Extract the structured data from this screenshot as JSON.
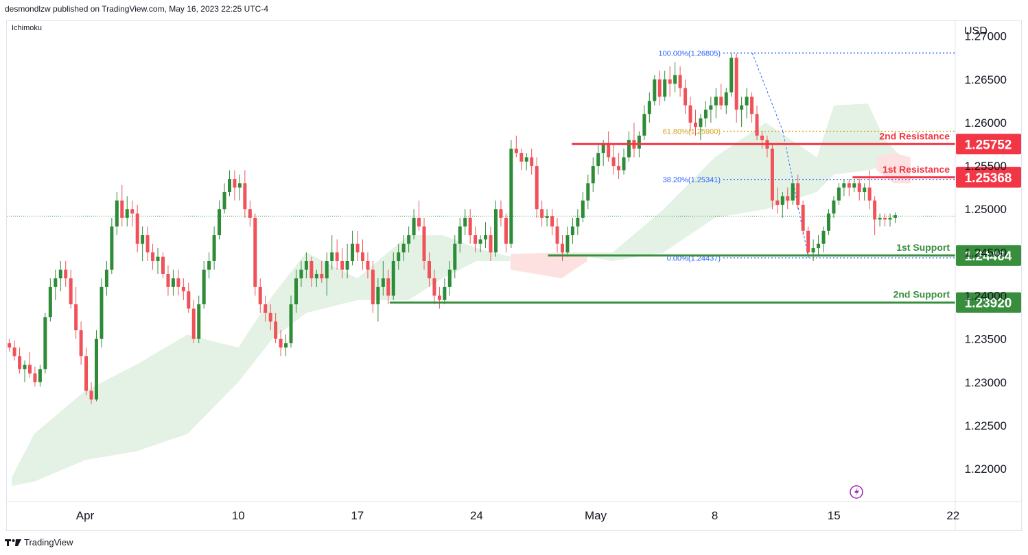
{
  "header": {
    "publisher_line": "desmondlzw published on TradingView.com, May 16, 2023 22:25 UTC-4"
  },
  "indicator_label": "Ichimoku",
  "footer": {
    "brand": "TradingView"
  },
  "colors": {
    "bull": "#2e8b37",
    "bear": "#f0525a",
    "resistance": "#f23645",
    "support": "#388e3c",
    "cloud_bull": "#e3f2e4",
    "cloud_bear": "#fde0e0",
    "fib_blue": "#2962ff",
    "fib_gold": "#d4a017"
  },
  "chart_data": {
    "type": "candlestick",
    "currency_label": "USD",
    "y_ticks": [
      "1.27000",
      "1.26500",
      "1.26000",
      "1.25500",
      "1.25000",
      "1.24500",
      "1.24000",
      "1.23500",
      "1.23000",
      "1.22500",
      "1.22000"
    ],
    "x_ticks": [
      {
        "label": "Apr",
        "day": 0
      },
      {
        "label": "10",
        "day": 9
      },
      {
        "label": "17",
        "day": 16
      },
      {
        "label": "24",
        "day": 23
      },
      {
        "label": "May",
        "day": 30
      },
      {
        "label": "8",
        "day": 37
      },
      {
        "label": "15",
        "day": 44
      },
      {
        "label": "22",
        "day": 51
      }
    ],
    "ylim": [
      1.2162,
      1.2718
    ],
    "levels": [
      {
        "name": "2nd Resistance",
        "value": 1.25752,
        "price_label": "1.25752",
        "type": "resistance",
        "start_day": 28.6
      },
      {
        "name": "1st Resistance",
        "value": 1.25368,
        "price_label": "1.25368",
        "type": "resistance",
        "start_day": 45.1
      },
      {
        "name": "1st Support",
        "value": 1.24464,
        "price_label": "1.24464",
        "type": "support",
        "start_day": 27.2
      },
      {
        "name": "2nd Support",
        "value": 1.2392,
        "price_label": "1.23920",
        "type": "support",
        "start_day": 17.9
      }
    ],
    "fibonacci": [
      {
        "label": "100.00%(1.26805)",
        "value": 1.26805
      },
      {
        "label": "61.80%(1.25900)",
        "value": 1.259
      },
      {
        "label": "38.20%(1.25341)",
        "value": 1.25341
      },
      {
        "label": "0.00%(1.24437)",
        "value": 1.24437
      }
    ],
    "last_price": 1.2492,
    "cloud": [
      {
        "day": -4.3,
        "upper": 1.219,
        "lower": 1.218
      },
      {
        "day": -3,
        "upper": 1.224,
        "lower": 1.2185
      },
      {
        "day": 0,
        "upper": 1.229,
        "lower": 1.221
      },
      {
        "day": 3,
        "upper": 1.232,
        "lower": 1.222
      },
      {
        "day": 6,
        "upper": 1.2355,
        "lower": 1.224
      },
      {
        "day": 9,
        "upper": 1.234,
        "lower": 1.23
      },
      {
        "day": 11,
        "upper": 1.24,
        "lower": 1.235
      },
      {
        "day": 13,
        "upper": 1.245,
        "lower": 1.238
      },
      {
        "day": 16,
        "upper": 1.242,
        "lower": 1.2395
      },
      {
        "day": 19,
        "upper": 1.247,
        "lower": 1.2395
      },
      {
        "day": 21,
        "upper": 1.247,
        "lower": 1.242
      },
      {
        "day": 23,
        "upper": 1.2455,
        "lower": 1.244
      },
      {
        "day": 26,
        "upper": 1.244,
        "lower": 1.244
      },
      {
        "day": 28,
        "upper": 1.245,
        "lower": 1.245
      },
      {
        "day": 31,
        "upper": 1.245,
        "lower": 1.244
      },
      {
        "day": 34,
        "upper": 1.25,
        "lower": 1.245
      },
      {
        "day": 37,
        "upper": 1.256,
        "lower": 1.249
      },
      {
        "day": 40,
        "upper": 1.26,
        "lower": 1.25
      },
      {
        "day": 43,
        "upper": 1.256,
        "lower": 1.252
      },
      {
        "day": 44,
        "upper": 1.262,
        "lower": 1.254
      },
      {
        "day": 46,
        "upper": 1.2622,
        "lower": 1.2545
      },
      {
        "day": 47,
        "upper": 1.258,
        "lower": 1.255
      },
      {
        "day": 48,
        "upper": 1.256,
        "lower": 1.253
      }
    ],
    "bear_cloud": [
      {
        "day": 25,
        "upper": 1.2448,
        "lower": 1.243
      },
      {
        "day": 28,
        "upper": 1.245,
        "lower": 1.242
      },
      {
        "day": 29.5,
        "upper": 1.2445,
        "lower": 1.244
      }
    ],
    "bear_cloud2": [
      {
        "day": 46.5,
        "upper": 1.256,
        "lower": 1.2545
      },
      {
        "day": 47.5,
        "upper": 1.2565,
        "lower": 1.253
      },
      {
        "day": 48.5,
        "upper": 1.256,
        "lower": 1.253
      }
    ],
    "candles_4h": [
      [
        1.2345,
        1.235,
        1.2335,
        1.234
      ],
      [
        1.234,
        1.2348,
        1.2325,
        1.233
      ],
      [
        1.233,
        1.234,
        1.231,
        1.2315
      ],
      [
        1.2315,
        1.2325,
        1.23,
        1.232
      ],
      [
        1.232,
        1.2335,
        1.2305,
        1.231
      ],
      [
        1.231,
        1.2318,
        1.2295,
        1.23
      ],
      [
        1.23,
        1.232,
        1.2295,
        1.2315
      ],
      [
        1.2315,
        1.238,
        1.231,
        1.2375
      ],
      [
        1.2375,
        1.242,
        1.237,
        1.241
      ],
      [
        1.241,
        1.243,
        1.2395,
        1.242
      ],
      [
        1.242,
        1.244,
        1.2405,
        1.243
      ],
      [
        1.243,
        1.244,
        1.241,
        1.242
      ],
      [
        1.242,
        1.243,
        1.2385,
        1.239
      ],
      [
        1.239,
        1.241,
        1.235,
        1.236
      ],
      [
        1.236,
        1.237,
        1.232,
        1.233
      ],
      [
        1.233,
        1.234,
        1.2285,
        1.229
      ],
      [
        1.229,
        1.23,
        1.2275,
        1.228
      ],
      [
        1.228,
        1.236,
        1.2278,
        1.235
      ],
      [
        1.235,
        1.242,
        1.234,
        1.241
      ],
      [
        1.241,
        1.244,
        1.24,
        1.243
      ],
      [
        1.243,
        1.249,
        1.2425,
        1.248
      ],
      [
        1.248,
        1.252,
        1.247,
        1.251
      ],
      [
        1.251,
        1.2528,
        1.248,
        1.249
      ],
      [
        1.249,
        1.2515,
        1.248,
        1.25
      ],
      [
        1.25,
        1.251,
        1.248,
        1.2495
      ],
      [
        1.2495,
        1.2505,
        1.245,
        1.246
      ],
      [
        1.246,
        1.248,
        1.244,
        1.247
      ],
      [
        1.247,
        1.248,
        1.244,
        1.245
      ],
      [
        1.245,
        1.246,
        1.243,
        1.244
      ],
      [
        1.244,
        1.2455,
        1.2425,
        1.2445
      ],
      [
        1.2445,
        1.245,
        1.242,
        1.2425
      ],
      [
        1.2425,
        1.2435,
        1.24,
        1.241
      ],
      [
        1.241,
        1.243,
        1.24,
        1.242
      ],
      [
        1.242,
        1.243,
        1.24,
        1.241
      ],
      [
        1.241,
        1.242,
        1.2395,
        1.2405
      ],
      [
        1.2405,
        1.2415,
        1.238,
        1.2385
      ],
      [
        1.2385,
        1.2395,
        1.2345,
        1.235
      ],
      [
        1.235,
        1.24,
        1.2345,
        1.239
      ],
      [
        1.239,
        1.244,
        1.2385,
        1.243
      ],
      [
        1.243,
        1.245,
        1.242,
        1.244
      ],
      [
        1.244,
        1.248,
        1.243,
        1.247
      ],
      [
        1.247,
        1.251,
        1.2465,
        1.25
      ],
      [
        1.25,
        1.253,
        1.2495,
        1.252
      ],
      [
        1.252,
        1.2545,
        1.2515,
        1.2535
      ],
      [
        1.2535,
        1.2545,
        1.251,
        1.2525
      ],
      [
        1.2525,
        1.254,
        1.251,
        1.253
      ],
      [
        1.253,
        1.2545,
        1.249,
        1.25
      ],
      [
        1.25,
        1.251,
        1.248,
        1.249
      ],
      [
        1.249,
        1.2495,
        1.24,
        1.241
      ],
      [
        1.241,
        1.242,
        1.238,
        1.239
      ],
      [
        1.239,
        1.24,
        1.237,
        1.238
      ],
      [
        1.238,
        1.239,
        1.236,
        1.237
      ],
      [
        1.237,
        1.238,
        1.2345,
        1.235
      ],
      [
        1.235,
        1.236,
        1.233,
        1.234
      ],
      [
        1.234,
        1.2355,
        1.233,
        1.2345
      ],
      [
        1.2345,
        1.24,
        1.234,
        1.239
      ],
      [
        1.239,
        1.243,
        1.238,
        1.242
      ],
      [
        1.242,
        1.244,
        1.241,
        1.243
      ],
      [
        1.243,
        1.245,
        1.242,
        1.244
      ],
      [
        1.244,
        1.2445,
        1.241,
        1.242
      ],
      [
        1.242,
        1.243,
        1.241,
        1.2425
      ],
      [
        1.2425,
        1.244,
        1.2415,
        1.242
      ],
      [
        1.242,
        1.245,
        1.24,
        1.244
      ],
      [
        1.244,
        1.247,
        1.243,
        1.245
      ],
      [
        1.245,
        1.2465,
        1.243,
        1.244
      ],
      [
        1.244,
        1.2455,
        1.242,
        1.243
      ],
      [
        1.243,
        1.246,
        1.242,
        1.244
      ],
      [
        1.244,
        1.2475,
        1.2435,
        1.246
      ],
      [
        1.246,
        1.2475,
        1.244,
        1.245
      ],
      [
        1.245,
        1.2465,
        1.243,
        1.244
      ],
      [
        1.244,
        1.245,
        1.242,
        1.243
      ],
      [
        1.243,
        1.244,
        1.238,
        1.239
      ],
      [
        1.239,
        1.242,
        1.237,
        1.241
      ],
      [
        1.241,
        1.244,
        1.24,
        1.242
      ],
      [
        1.242,
        1.243,
        1.239,
        1.24
      ],
      [
        1.24,
        1.245,
        1.2395,
        1.244
      ],
      [
        1.244,
        1.246,
        1.243,
        1.245
      ],
      [
        1.245,
        1.247,
        1.244,
        1.246
      ],
      [
        1.246,
        1.248,
        1.245,
        1.247
      ],
      [
        1.247,
        1.25,
        1.2465,
        1.249
      ],
      [
        1.249,
        1.251,
        1.2475,
        1.248
      ],
      [
        1.248,
        1.249,
        1.243,
        1.244
      ],
      [
        1.244,
        1.245,
        1.241,
        1.242
      ],
      [
        1.242,
        1.243,
        1.239,
        1.24
      ],
      [
        1.24,
        1.241,
        1.2385,
        1.2395
      ],
      [
        1.2395,
        1.242,
        1.239,
        1.241
      ],
      [
        1.241,
        1.244,
        1.24,
        1.243
      ],
      [
        1.243,
        1.247,
        1.242,
        1.246
      ],
      [
        1.246,
        1.249,
        1.245,
        1.248
      ],
      [
        1.248,
        1.25,
        1.247,
        1.249
      ],
      [
        1.249,
        1.25,
        1.246,
        1.247
      ],
      [
        1.247,
        1.248,
        1.245,
        1.246
      ],
      [
        1.246,
        1.247,
        1.245,
        1.2465
      ],
      [
        1.2465,
        1.2485,
        1.2455,
        1.247
      ],
      [
        1.247,
        1.248,
        1.244,
        1.245
      ],
      [
        1.245,
        1.251,
        1.2445,
        1.25
      ],
      [
        1.25,
        1.251,
        1.248,
        1.249
      ],
      [
        1.249,
        1.2495,
        1.245,
        1.246
      ],
      [
        1.246,
        1.258,
        1.2455,
        1.257
      ],
      [
        1.257,
        1.2585,
        1.256,
        1.2565
      ],
      [
        1.2565,
        1.257,
        1.2545,
        1.2555
      ],
      [
        1.2555,
        1.2565,
        1.2545,
        1.256
      ],
      [
        1.256,
        1.257,
        1.254,
        1.255
      ],
      [
        1.255,
        1.256,
        1.249,
        1.25
      ],
      [
        1.25,
        1.251,
        1.248,
        1.249
      ],
      [
        1.249,
        1.25,
        1.248,
        1.2492
      ],
      [
        1.2492,
        1.25,
        1.247,
        1.248
      ],
      [
        1.248,
        1.249,
        1.245,
        1.246
      ],
      [
        1.246,
        1.247,
        1.244,
        1.245
      ],
      [
        1.245,
        1.248,
        1.2445,
        1.247
      ],
      [
        1.247,
        1.249,
        1.246,
        1.248
      ],
      [
        1.248,
        1.25,
        1.247,
        1.249
      ],
      [
        1.249,
        1.252,
        1.2485,
        1.251
      ],
      [
        1.251,
        1.254,
        1.25,
        1.253
      ],
      [
        1.253,
        1.256,
        1.252,
        1.255
      ],
      [
        1.255,
        1.2575,
        1.254,
        1.2565
      ],
      [
        1.2565,
        1.258,
        1.255,
        1.2575
      ],
      [
        1.2575,
        1.259,
        1.2555,
        1.256
      ],
      [
        1.256,
        1.2575,
        1.254,
        1.255
      ],
      [
        1.255,
        1.2565,
        1.2535,
        1.2545
      ],
      [
        1.2545,
        1.257,
        1.254,
        1.256
      ],
      [
        1.256,
        1.259,
        1.2555,
        1.258
      ],
      [
        1.258,
        1.26,
        1.256,
        1.257
      ],
      [
        1.257,
        1.259,
        1.256,
        1.2585
      ],
      [
        1.2585,
        1.262,
        1.258,
        1.261
      ],
      [
        1.261,
        1.2635,
        1.26,
        1.2625
      ],
      [
        1.2625,
        1.2655,
        1.262,
        1.265
      ],
      [
        1.265,
        1.266,
        1.262,
        1.263
      ],
      [
        1.263,
        1.266,
        1.2625,
        1.265
      ],
      [
        1.265,
        1.2665,
        1.263,
        1.2645
      ],
      [
        1.2645,
        1.267,
        1.2635,
        1.2655
      ],
      [
        1.2655,
        1.2665,
        1.263,
        1.264
      ],
      [
        1.264,
        1.265,
        1.261,
        1.262
      ],
      [
        1.262,
        1.263,
        1.259,
        1.26
      ],
      [
        1.26,
        1.2615,
        1.2585,
        1.2595
      ],
      [
        1.2595,
        1.261,
        1.258,
        1.2605
      ],
      [
        1.2605,
        1.2625,
        1.2595,
        1.2615
      ],
      [
        1.2615,
        1.263,
        1.26,
        1.262
      ],
      [
        1.262,
        1.264,
        1.2605,
        1.263
      ],
      [
        1.263,
        1.2645,
        1.2615,
        1.262
      ],
      [
        1.262,
        1.264,
        1.261,
        1.2635
      ],
      [
        1.2635,
        1.268,
        1.263,
        1.2675
      ],
      [
        1.2675,
        1.268,
        1.26,
        1.2615
      ],
      [
        1.2615,
        1.263,
        1.2595,
        1.262
      ],
      [
        1.262,
        1.264,
        1.2605,
        1.263
      ],
      [
        1.263,
        1.2635,
        1.26,
        1.261
      ],
      [
        1.261,
        1.262,
        1.258,
        1.2585
      ],
      [
        1.2585,
        1.259,
        1.257,
        1.258
      ],
      [
        1.258,
        1.2585,
        1.256,
        1.257
      ],
      [
        1.257,
        1.2575,
        1.25,
        1.251
      ],
      [
        1.251,
        1.2525,
        1.2495,
        1.2505
      ],
      [
        1.2505,
        1.252,
        1.249,
        1.2515
      ],
      [
        1.2515,
        1.2525,
        1.25,
        1.251
      ],
      [
        1.251,
        1.2535,
        1.2505,
        1.253
      ],
      [
        1.253,
        1.254,
        1.25,
        1.2505
      ],
      [
        1.2505,
        1.251,
        1.247,
        1.2475
      ],
      [
        1.2475,
        1.248,
        1.2445,
        1.245
      ],
      [
        1.245,
        1.2465,
        1.244,
        1.2455
      ],
      [
        1.2455,
        1.247,
        1.2445,
        1.246
      ],
      [
        1.246,
        1.248,
        1.245,
        1.2475
      ],
      [
        1.2475,
        1.25,
        1.247,
        1.2495
      ],
      [
        1.2495,
        1.2515,
        1.249,
        1.251
      ],
      [
        1.251,
        1.253,
        1.2505,
        1.2525
      ],
      [
        1.2525,
        1.2535,
        1.2515,
        1.253
      ],
      [
        1.253,
        1.2535,
        1.2515,
        1.2525
      ],
      [
        1.2525,
        1.2535,
        1.252,
        1.253
      ],
      [
        1.253,
        1.2535,
        1.251,
        1.252
      ],
      [
        1.252,
        1.253,
        1.251,
        1.2525
      ],
      [
        1.2525,
        1.2545,
        1.25,
        1.251
      ],
      [
        1.251,
        1.2515,
        1.247,
        1.2488
      ],
      [
        1.2488,
        1.2495,
        1.248,
        1.249
      ],
      [
        1.249,
        1.2495,
        1.248,
        1.2488
      ],
      [
        1.2488,
        1.2495,
        1.248,
        1.249
      ],
      [
        1.249,
        1.2496,
        1.2484,
        1.2493
      ]
    ]
  }
}
